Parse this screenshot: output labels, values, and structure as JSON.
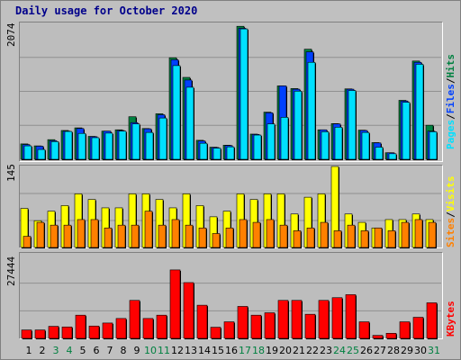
{
  "title": "Daily usage for October 2020",
  "colors": {
    "hits": "#008040",
    "files": "#0040ff",
    "pages": "#00e0ff",
    "visits": "#ffff00",
    "sites": "#ff8000",
    "kbytes": "#ff0000",
    "weekend_day": "#008040",
    "weekday": "#000000"
  },
  "legend_top": {
    "pages": "Pages",
    "files": "Files",
    "hits": "Hits",
    "sep": "/"
  },
  "legend_mid": {
    "sites": "Sites",
    "visits": "Visits",
    "sep": "/"
  },
  "legend_bottom": {
    "kbytes": "KBytes"
  },
  "chart_data": [
    {
      "type": "bar",
      "panel": "hits-files-pages",
      "ymax_label": "2074",
      "ylim": [
        0,
        2074
      ],
      "categories": [
        "1",
        "2",
        "3",
        "4",
        "5",
        "6",
        "7",
        "8",
        "9",
        "10",
        "11",
        "12",
        "13",
        "14",
        "15",
        "16",
        "17",
        "18",
        "19",
        "20",
        "21",
        "22",
        "23",
        "24",
        "25",
        "26",
        "27",
        "28",
        "29",
        "30",
        "31"
      ],
      "weekend_days": [
        "3",
        "4",
        "10",
        "11",
        "17",
        "18",
        "24",
        "25",
        "31"
      ],
      "series": [
        {
          "name": "Hits",
          "values": [
            235,
            205,
            300,
            440,
            480,
            350,
            430,
            450,
            650,
            470,
            695,
            1550,
            1250,
            290,
            185,
            215,
            2030,
            385,
            720,
            1120,
            1080,
            1680,
            450,
            545,
            1075,
            445,
            255,
            100,
            900,
            1500,
            520
          ]
        },
        {
          "name": "Files",
          "values": [
            225,
            200,
            285,
            430,
            470,
            345,
            430,
            440,
            560,
            465,
            680,
            1520,
            1210,
            280,
            180,
            210,
            2000,
            380,
            710,
            1120,
            1070,
            1640,
            450,
            540,
            1070,
            440,
            250,
            100,
            890,
            1480,
            430
          ]
        },
        {
          "name": "Pages",
          "values": [
            205,
            150,
            270,
            425,
            395,
            330,
            400,
            430,
            540,
            410,
            630,
            1430,
            1100,
            245,
            170,
            190,
            1990,
            370,
            540,
            640,
            1040,
            1480,
            420,
            490,
            1050,
            410,
            185,
            85,
            870,
            1450,
            420
          ]
        }
      ]
    },
    {
      "type": "bar",
      "panel": "visits-sites",
      "ymax_label": "145",
      "ylim": [
        0,
        145
      ],
      "categories": [
        "1",
        "2",
        "3",
        "4",
        "5",
        "6",
        "7",
        "8",
        "9",
        "10",
        "11",
        "12",
        "13",
        "14",
        "15",
        "16",
        "17",
        "18",
        "19",
        "20",
        "21",
        "22",
        "23",
        "24",
        "25",
        "26",
        "27",
        "28",
        "29",
        "30",
        "31"
      ],
      "series": [
        {
          "name": "Visits",
          "values": [
            70,
            48,
            65,
            75,
            96,
            86,
            71,
            71,
            96,
            96,
            86,
            71,
            96,
            75,
            55,
            65,
            96,
            86,
            96,
            96,
            60,
            90,
            96,
            145,
            60,
            45,
            35,
            50,
            50,
            60,
            50
          ]
        },
        {
          "name": "Sites",
          "values": [
            20,
            45,
            40,
            40,
            50,
            50,
            35,
            40,
            40,
            65,
            40,
            50,
            40,
            35,
            25,
            35,
            50,
            45,
            50,
            40,
            30,
            35,
            45,
            30,
            40,
            30,
            35,
            30,
            45,
            50,
            45
          ]
        }
      ]
    },
    {
      "type": "bar",
      "panel": "kbytes",
      "ymax_label": "27444",
      "ylim": [
        0,
        27444
      ],
      "categories": [
        "1",
        "2",
        "3",
        "4",
        "5",
        "6",
        "7",
        "8",
        "9",
        "10",
        "11",
        "12",
        "13",
        "14",
        "15",
        "16",
        "17",
        "18",
        "19",
        "20",
        "21",
        "22",
        "23",
        "24",
        "25",
        "26",
        "27",
        "28",
        "29",
        "30",
        "31"
      ],
      "series": [
        {
          "name": "KBytes",
          "values": [
            2800,
            2800,
            4000,
            3800,
            7700,
            4100,
            5100,
            6600,
            12600,
            6600,
            7700,
            22700,
            18500,
            11000,
            3700,
            5500,
            10600,
            7700,
            8500,
            12600,
            12600,
            8000,
            12600,
            13500,
            14500,
            5500,
            1000,
            1700,
            5500,
            7000,
            11800
          ]
        }
      ]
    }
  ]
}
